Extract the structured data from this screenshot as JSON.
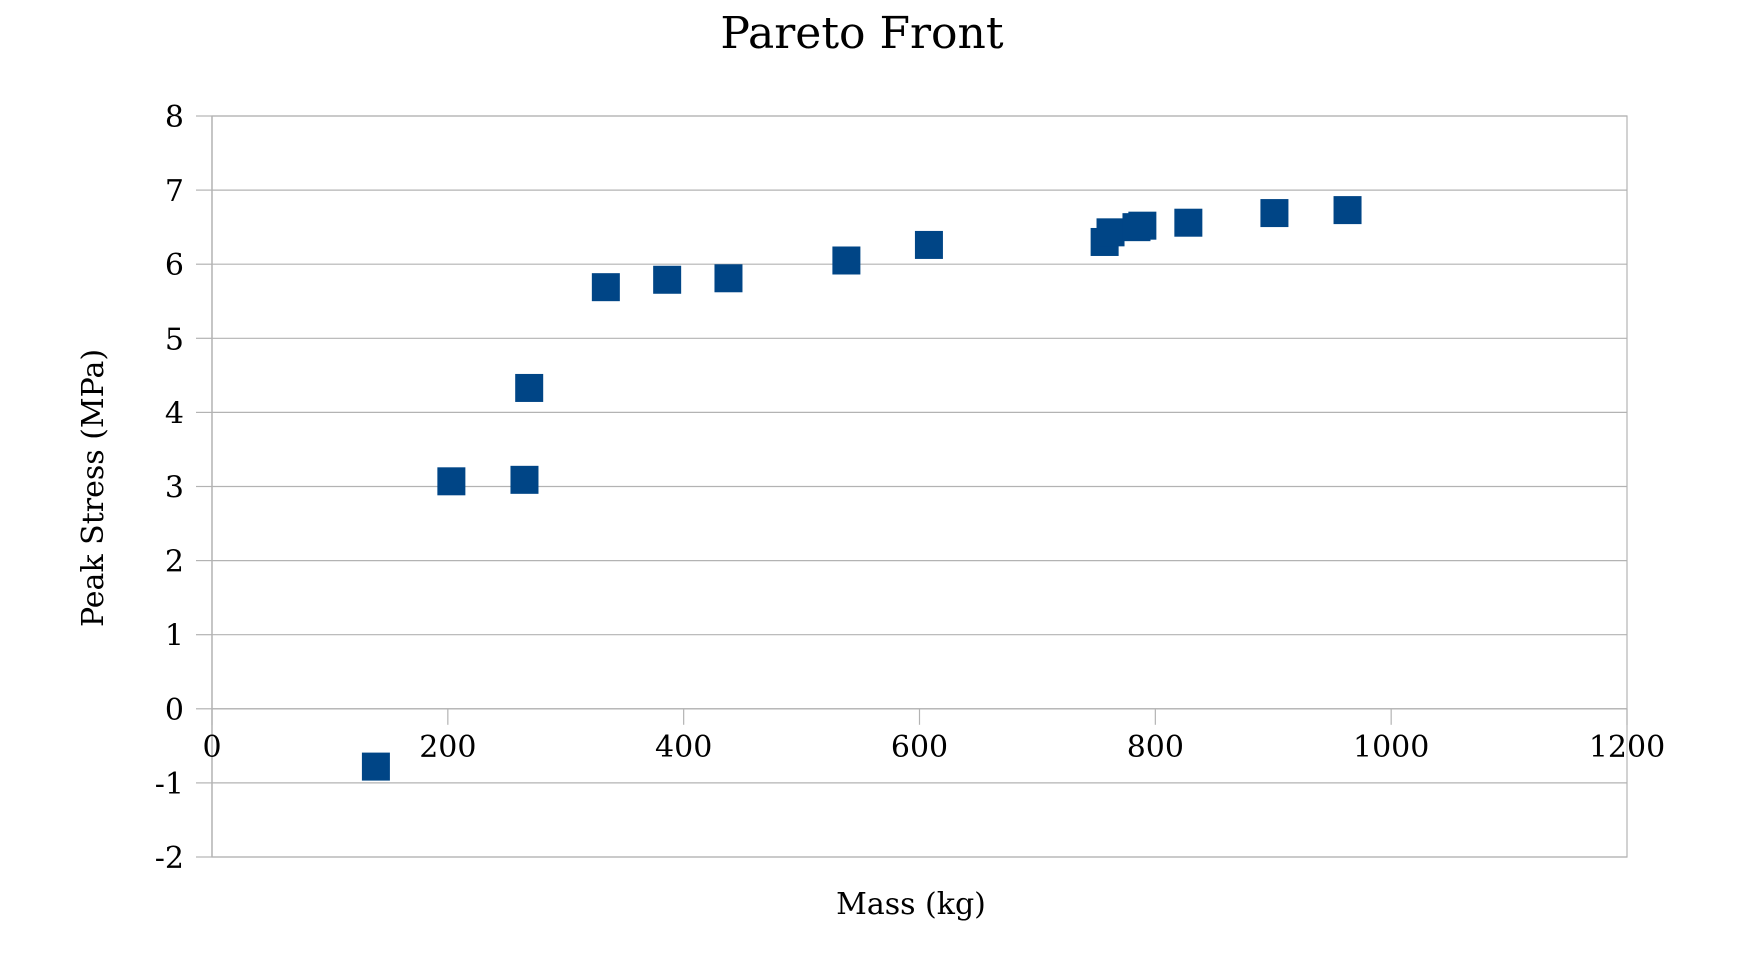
{
  "chart_data": {
    "type": "scatter",
    "title": "Pareto Front",
    "xlabel": "Mass (kg)",
    "ylabel": "Peak Stress (MPa)",
    "xlim": [
      0,
      1200
    ],
    "ylim": [
      -2,
      8
    ],
    "xticks": [
      0,
      200,
      400,
      600,
      800,
      1000,
      1200
    ],
    "yticks": [
      -2,
      -1,
      0,
      1,
      2,
      3,
      4,
      5,
      6,
      7,
      8
    ],
    "grid": true,
    "legend": "none",
    "marker": "square",
    "series": [
      {
        "color": "#004586",
        "points": [
          {
            "x": 139,
            "y": -0.78
          },
          {
            "x": 203,
            "y": 3.07
          },
          {
            "x": 265,
            "y": 3.09
          },
          {
            "x": 269,
            "y": 4.33
          },
          {
            "x": 334,
            "y": 5.69
          },
          {
            "x": 386,
            "y": 5.79
          },
          {
            "x": 438,
            "y": 5.81
          },
          {
            "x": 538,
            "y": 6.05
          },
          {
            "x": 608,
            "y": 6.26
          },
          {
            "x": 757,
            "y": 6.3
          },
          {
            "x": 762,
            "y": 6.43
          },
          {
            "x": 784,
            "y": 6.5
          },
          {
            "x": 789,
            "y": 6.52
          },
          {
            "x": 828,
            "y": 6.56
          },
          {
            "x": 901,
            "y": 6.69
          },
          {
            "x": 963,
            "y": 6.73
          }
        ]
      }
    ]
  }
}
